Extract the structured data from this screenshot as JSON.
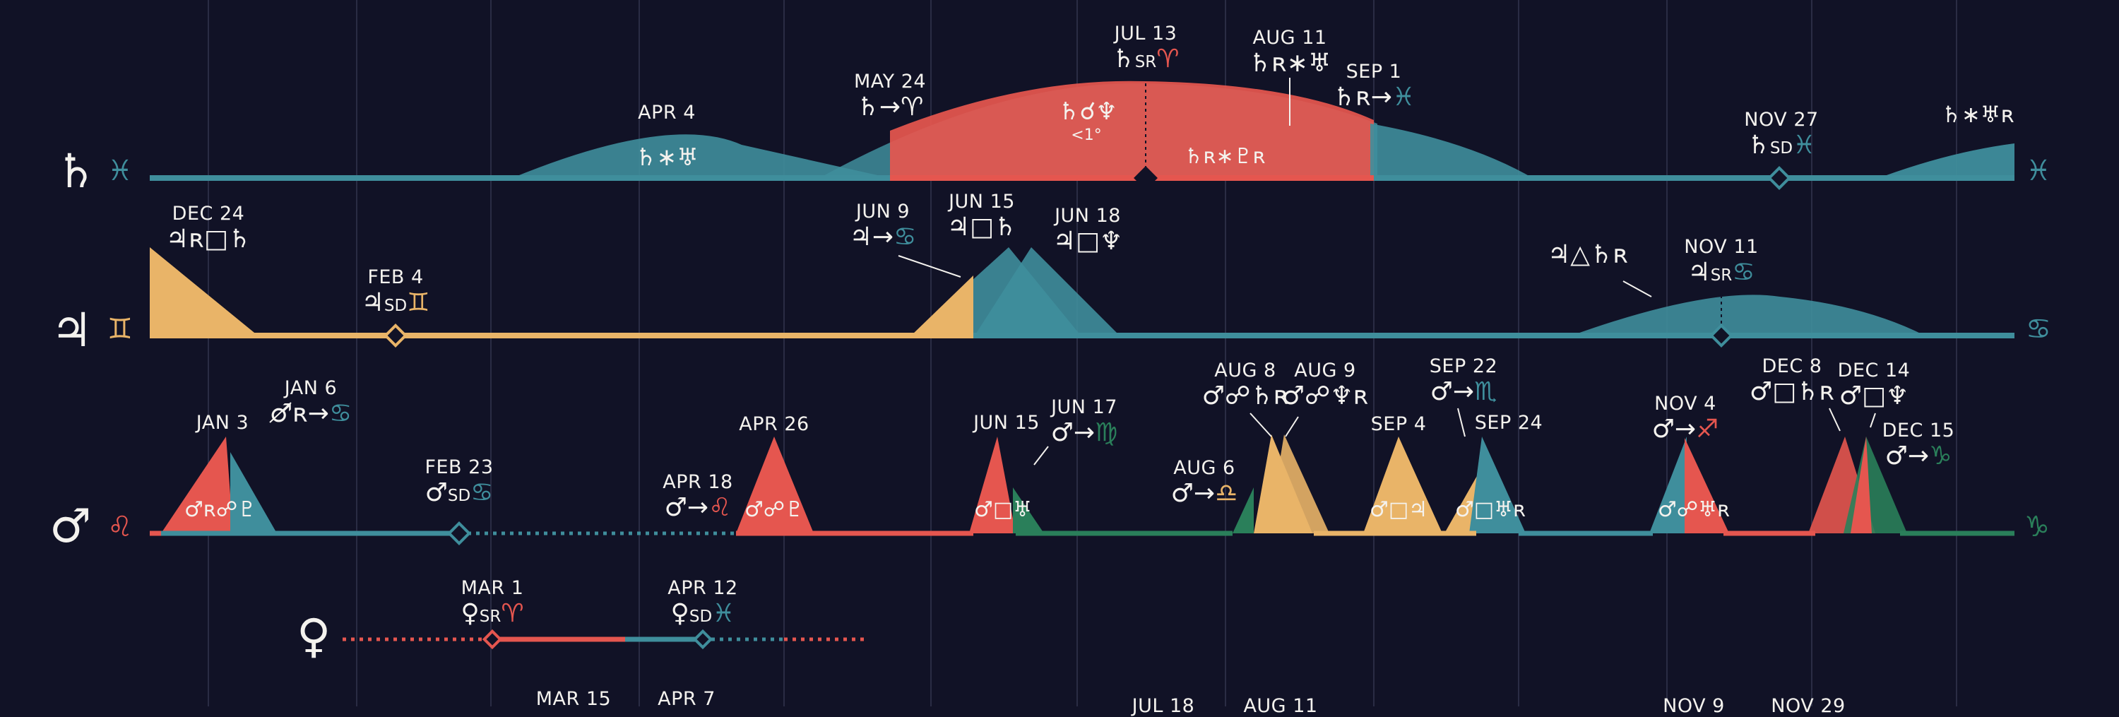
{
  "colors": {
    "background": "#111226",
    "teal": "#3f8e9c",
    "red": "#e5564f",
    "gold": "#e9b468",
    "green": "#2a7f5a",
    "text": "#f4f2ee"
  },
  "rows": {
    "saturn": {
      "glyph": "♄",
      "sign_start": "♓",
      "sign_end": "♓"
    },
    "jupiter": {
      "glyph": "♃",
      "sign_start": "♊",
      "sign_end": "♋"
    },
    "mars": {
      "glyph": "♂",
      "sign_start": "♌",
      "sign_end": "♑"
    },
    "venus": {
      "glyph": "♀"
    }
  },
  "inner": {
    "sat_apr4": "♄∗♅",
    "sat_conj": "♄☌♆",
    "sat_conj_note": "<1°",
    "sat_sxt": "♄ʀ∗♇ʀ",
    "sat_end": "♄∗♅ʀ",
    "mars_jan3": "♂ʀ☍♇",
    "mars_apr26": "♂☍♇",
    "mars_jun15": "♂□♅",
    "mars_sep4": "♂□♃",
    "mars_sep24": "♂□♅ʀ",
    "mars_nov4": "♂☍♅ʀ"
  },
  "labels": {
    "sat_apr4": {
      "date": "APR 4"
    },
    "sat_may24": {
      "date": "MAY 24",
      "aspect": "♄→♈"
    },
    "sat_jul13": {
      "date": "JUL 13",
      "p": "♄",
      "mid": "SR",
      "sign": "♈"
    },
    "sat_aug11": {
      "date": "AUG 11",
      "aspect": "♄ʀ∗♅"
    },
    "sat_sep1": {
      "date": "SEP 1",
      "p": "♄ʀ→",
      "sign": "♓"
    },
    "sat_nov27": {
      "date": "NOV 27",
      "p": "♄",
      "mid": "SD",
      "sign": "♓"
    },
    "sat_end": {
      "aspect": ""
    },
    "jup_dec24": {
      "date": "DEC 24",
      "aspect": "♃ʀ□♄"
    },
    "jup_feb4": {
      "date": "FEB 4",
      "p": "♃",
      "mid": "SD",
      "sign": "♊"
    },
    "jup_jun9": {
      "date": "JUN 9",
      "p": "♃→",
      "sign": "♋"
    },
    "jup_jun15": {
      "date": "JUN 15",
      "aspect": "♃□♄"
    },
    "jup_jun18": {
      "date": "JUN 18",
      "aspect": "♃□♆"
    },
    "jup_trine": {
      "aspect": "♃△♄ʀ"
    },
    "jup_nov11": {
      "date": "NOV 11",
      "p": "♃",
      "mid": "SR",
      "sign": "♋"
    },
    "mars_jan3": {
      "date": "JAN 3"
    },
    "mars_jan6": {
      "date": "JAN 6",
      "p": "♂ʀ→",
      "sign": "♋"
    },
    "mars_feb23": {
      "date": "FEB 23",
      "p": "♂",
      "mid": "SD",
      "sign": "♋"
    },
    "mars_apr18": {
      "date": "APR 18",
      "p": "♂→",
      "sign": "♌"
    },
    "mars_apr26": {
      "date": "APR 26"
    },
    "mars_jun15": {
      "date": "JUN 15"
    },
    "mars_jun17": {
      "date": "JUN 17",
      "p": "♂→",
      "sign": "♍"
    },
    "mars_aug6": {
      "date": "AUG 6",
      "p": "♂→",
      "sign": "♎"
    },
    "mars_aug8": {
      "date": "AUG 8",
      "aspect": "♂☍♄ʀ"
    },
    "mars_aug9": {
      "date": "AUG 9",
      "aspect": "♂☍♆ʀ"
    },
    "mars_sep4": {
      "date": "SEP 4"
    },
    "mars_sep22": {
      "date": "SEP 22",
      "p": "♂→",
      "sign": "♏"
    },
    "mars_sep24": {
      "date": "SEP 24"
    },
    "mars_nov4": {
      "date": "NOV 4",
      "p": "♂→",
      "sign": "♐"
    },
    "mars_dec8": {
      "date": "DEC 8",
      "aspect": "♂□♄ʀ"
    },
    "mars_dec14": {
      "date": "DEC 14",
      "aspect": "♂□♆"
    },
    "mars_dec15": {
      "date": "DEC 15",
      "p": "♂→",
      "sign": "♑"
    },
    "ven_mar1": {
      "date": "MAR 1",
      "p": "♀",
      "mid": "SR",
      "sign": "♈"
    },
    "ven_apr12": {
      "date": "APR 12",
      "p": "♀",
      "mid": "SD",
      "sign": "♓"
    },
    "bottom_mar15": {
      "date": "MAR 15"
    },
    "bottom_apr7": {
      "date": "APR 7"
    },
    "bottom_jul18": {
      "date": "JUL 18"
    },
    "bottom_aug11": {
      "date": "AUG 11"
    },
    "bottom_nov9": {
      "date": "NOV 9"
    },
    "bottom_nov29": {
      "date": "NOV 29"
    }
  }
}
